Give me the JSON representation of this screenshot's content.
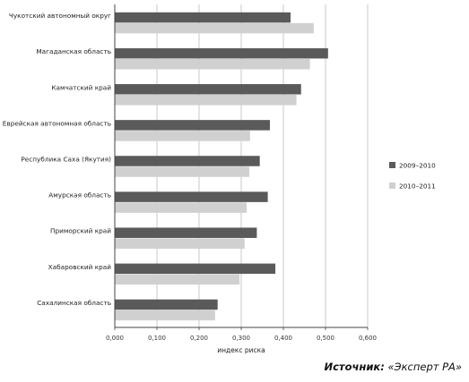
{
  "chart_data": {
    "type": "bar",
    "orientation": "horizontal",
    "categories": [
      "Чукотский автономный округ",
      "Магаданская область",
      "Камчатский край",
      "Еврейская автономная область",
      "Республика Саха (Якутия)",
      "Амурская область",
      "Приморский край",
      "Хабаровский край",
      "Сахалинская область"
    ],
    "series": [
      {
        "name": "2009–2010",
        "color": "#5a5a5a",
        "values": [
          0.417,
          0.506,
          0.442,
          0.368,
          0.344,
          0.363,
          0.337,
          0.381,
          0.244
        ]
      },
      {
        "name": "2010–2011",
        "color": "#d0d0d0",
        "values": [
          0.472,
          0.463,
          0.431,
          0.321,
          0.319,
          0.313,
          0.308,
          0.296,
          0.238
        ]
      }
    ],
    "xlabel": "индекс риска",
    "xlim": [
      0,
      0.6
    ],
    "xticks": [
      "0,000",
      "0,100",
      "0,200",
      "0,300",
      "0,400",
      "0,500",
      "0,600"
    ],
    "grid": "vertical",
    "legend": "right"
  },
  "source": {
    "label": "Источник:",
    "text": "«Эксперт РА»"
  }
}
